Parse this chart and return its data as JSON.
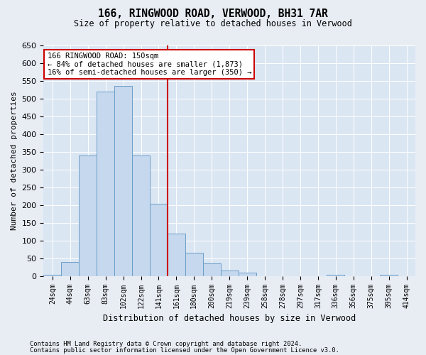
{
  "title": "166, RINGWOOD ROAD, VERWOOD, BH31 7AR",
  "subtitle": "Size of property relative to detached houses in Verwood",
  "xlabel": "Distribution of detached houses by size in Verwood",
  "ylabel": "Number of detached properties",
  "footnote1": "Contains HM Land Registry data © Crown copyright and database right 2024.",
  "footnote2": "Contains public sector information licensed under the Open Government Licence v3.0.",
  "annotation_title": "166 RINGWOOD ROAD: 150sqm",
  "annotation_line1": "← 84% of detached houses are smaller (1,873)",
  "annotation_line2": "16% of semi-detached houses are larger (350) →",
  "bin_labels": [
    "24sqm",
    "44sqm",
    "63sqm",
    "83sqm",
    "102sqm",
    "122sqm",
    "141sqm",
    "161sqm",
    "180sqm",
    "200sqm",
    "219sqm",
    "239sqm",
    "258sqm",
    "278sqm",
    "297sqm",
    "317sqm",
    "336sqm",
    "356sqm",
    "375sqm",
    "395sqm",
    "414sqm"
  ],
  "bar_values": [
    3,
    40,
    340,
    520,
    535,
    340,
    203,
    120,
    65,
    35,
    15,
    10,
    0,
    0,
    0,
    0,
    3,
    0,
    0,
    3,
    0
  ],
  "bar_color": "#c5d8ee",
  "bar_edge_color": "#6b9fc8",
  "vline_color": "#cc0000",
  "vline_x": 6.5,
  "ylim": [
    0,
    650
  ],
  "yticks": [
    0,
    50,
    100,
    150,
    200,
    250,
    300,
    350,
    400,
    450,
    500,
    550,
    600,
    650
  ],
  "background_color": "#e8edf4",
  "plot_bg_color": "#dbe6f3",
  "grid_color": "#ffffff",
  "annotation_box_facecolor": "#ffffff",
  "annotation_box_edgecolor": "#cc0000"
}
